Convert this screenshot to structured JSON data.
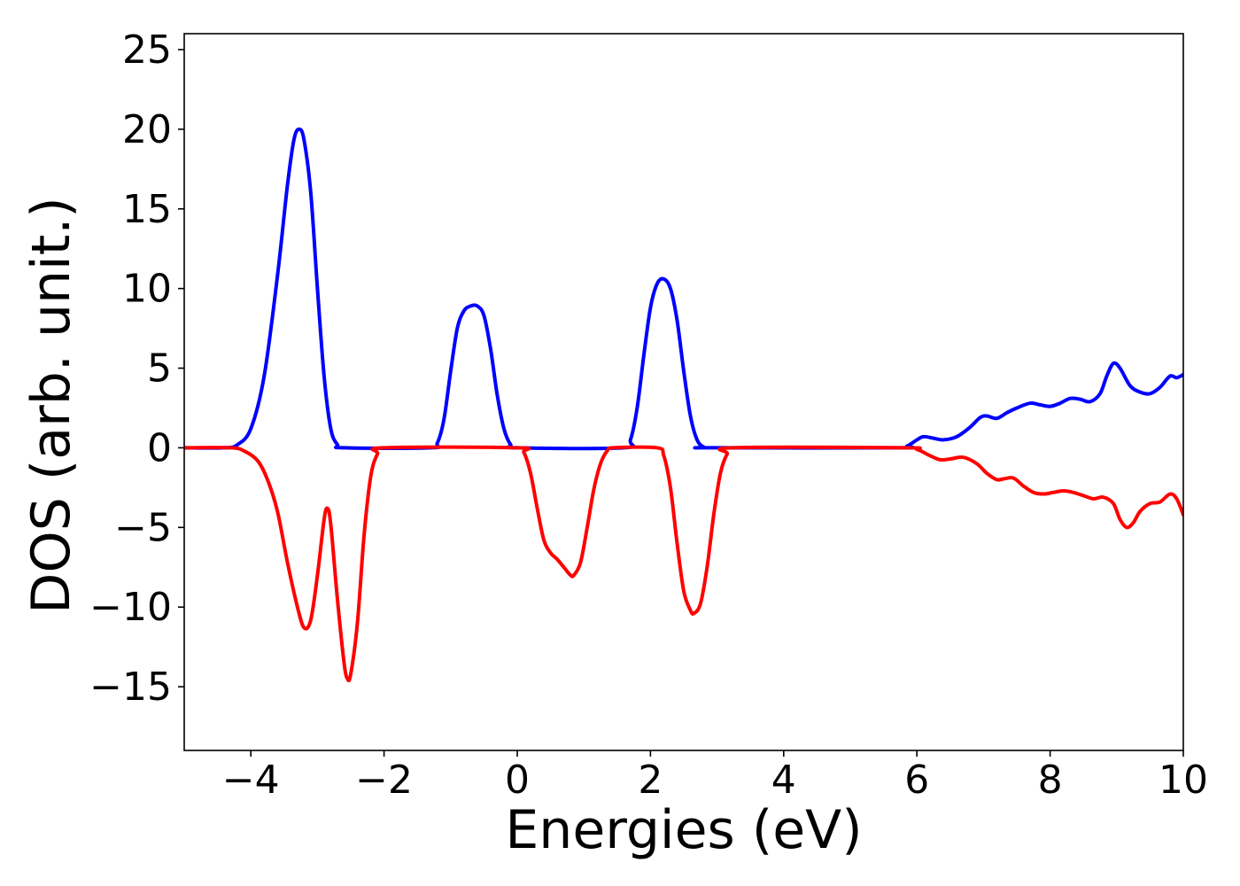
{
  "chart_data": {
    "type": "line",
    "title": "",
    "xlabel": "Energies (eV)",
    "ylabel": "DOS (arb. unit.)",
    "xlim": [
      -5,
      10
    ],
    "ylim": [
      -19,
      26
    ],
    "x_ticks": [
      -4,
      -2,
      0,
      2,
      4,
      6,
      8,
      10
    ],
    "y_ticks": [
      -15,
      -10,
      -5,
      0,
      5,
      10,
      15,
      20,
      25
    ],
    "x_tick_labels": [
      "−4",
      "−2",
      "0",
      "2",
      "4",
      "6",
      "8",
      "10"
    ],
    "y_tick_labels": [
      "−15",
      "−10",
      "−5",
      "0",
      "5",
      "10",
      "15",
      "20",
      "25"
    ],
    "grid": false,
    "legend": false,
    "series": [
      {
        "color": "#0000ff",
        "points": [
          [
            -5.0,
            0
          ],
          [
            -4.4,
            0
          ],
          [
            -4.2,
            0.2
          ],
          [
            -4.0,
            1.2
          ],
          [
            -3.8,
            4.5
          ],
          [
            -3.6,
            10.8
          ],
          [
            -3.45,
            16.5
          ],
          [
            -3.35,
            19.4
          ],
          [
            -3.27,
            20.0
          ],
          [
            -3.2,
            19.3
          ],
          [
            -3.1,
            16.0
          ],
          [
            -3.0,
            10.0
          ],
          [
            -2.9,
            4.5
          ],
          [
            -2.8,
            1.2
          ],
          [
            -2.7,
            0.2
          ],
          [
            -2.6,
            0
          ],
          [
            -1.3,
            0
          ],
          [
            -1.2,
            0.3
          ],
          [
            -1.1,
            1.8
          ],
          [
            -1.0,
            4.8
          ],
          [
            -0.9,
            7.5
          ],
          [
            -0.8,
            8.6
          ],
          [
            -0.7,
            8.9
          ],
          [
            -0.6,
            8.9
          ],
          [
            -0.5,
            8.3
          ],
          [
            -0.4,
            6.2
          ],
          [
            -0.3,
            3.3
          ],
          [
            -0.2,
            1.2
          ],
          [
            -0.1,
            0.2
          ],
          [
            0.0,
            0
          ],
          [
            1.6,
            0
          ],
          [
            1.7,
            0.5
          ],
          [
            1.8,
            2.5
          ],
          [
            1.9,
            5.8
          ],
          [
            2.0,
            8.8
          ],
          [
            2.1,
            10.3
          ],
          [
            2.2,
            10.6
          ],
          [
            2.3,
            10.0
          ],
          [
            2.4,
            8.0
          ],
          [
            2.5,
            4.8
          ],
          [
            2.6,
            2.0
          ],
          [
            2.7,
            0.5
          ],
          [
            2.8,
            0.05
          ],
          [
            2.9,
            0
          ],
          [
            5.7,
            0
          ],
          [
            5.85,
            0.1
          ],
          [
            6.0,
            0.5
          ],
          [
            6.1,
            0.7
          ],
          [
            6.25,
            0.6
          ],
          [
            6.4,
            0.5
          ],
          [
            6.6,
            0.7
          ],
          [
            6.8,
            1.3
          ],
          [
            6.95,
            1.9
          ],
          [
            7.05,
            2.0
          ],
          [
            7.2,
            1.85
          ],
          [
            7.35,
            2.2
          ],
          [
            7.5,
            2.5
          ],
          [
            7.7,
            2.8
          ],
          [
            7.85,
            2.7
          ],
          [
            8.0,
            2.6
          ],
          [
            8.15,
            2.8
          ],
          [
            8.3,
            3.1
          ],
          [
            8.45,
            3.05
          ],
          [
            8.6,
            2.9
          ],
          [
            8.75,
            3.4
          ],
          [
            8.85,
            4.5
          ],
          [
            8.95,
            5.3
          ],
          [
            9.05,
            5.0
          ],
          [
            9.2,
            3.9
          ],
          [
            9.35,
            3.5
          ],
          [
            9.5,
            3.4
          ],
          [
            9.65,
            3.8
          ],
          [
            9.8,
            4.5
          ],
          [
            9.9,
            4.4
          ],
          [
            10.0,
            4.6
          ]
        ]
      },
      {
        "color": "#ff0000",
        "points": [
          [
            -5.0,
            0
          ],
          [
            -4.3,
            0
          ],
          [
            -4.1,
            -0.2
          ],
          [
            -3.9,
            -0.8
          ],
          [
            -3.75,
            -2.0
          ],
          [
            -3.6,
            -4.0
          ],
          [
            -3.45,
            -7.2
          ],
          [
            -3.3,
            -10.0
          ],
          [
            -3.2,
            -11.3
          ],
          [
            -3.1,
            -10.8
          ],
          [
            -3.0,
            -8.0
          ],
          [
            -2.9,
            -4.5
          ],
          [
            -2.85,
            -3.8
          ],
          [
            -2.8,
            -4.8
          ],
          [
            -2.7,
            -9.5
          ],
          [
            -2.6,
            -13.5
          ],
          [
            -2.55,
            -14.5
          ],
          [
            -2.5,
            -14.2
          ],
          [
            -2.4,
            -11.0
          ],
          [
            -2.3,
            -5.5
          ],
          [
            -2.2,
            -1.8
          ],
          [
            -2.1,
            -0.4
          ],
          [
            -2.0,
            0
          ],
          [
            0.0,
            0
          ],
          [
            0.1,
            -0.3
          ],
          [
            0.2,
            -1.6
          ],
          [
            0.3,
            -3.8
          ],
          [
            0.4,
            -5.8
          ],
          [
            0.5,
            -6.6
          ],
          [
            0.6,
            -7.0
          ],
          [
            0.7,
            -7.5
          ],
          [
            0.8,
            -8.0
          ],
          [
            0.85,
            -8.0
          ],
          [
            0.95,
            -7.2
          ],
          [
            1.05,
            -5.0
          ],
          [
            1.15,
            -2.6
          ],
          [
            1.25,
            -1.0
          ],
          [
            1.35,
            -0.2
          ],
          [
            1.45,
            0
          ],
          [
            2.1,
            0
          ],
          [
            2.2,
            -0.5
          ],
          [
            2.3,
            -2.5
          ],
          [
            2.4,
            -6.0
          ],
          [
            2.5,
            -9.0
          ],
          [
            2.6,
            -10.2
          ],
          [
            2.65,
            -10.4
          ],
          [
            2.75,
            -9.8
          ],
          [
            2.85,
            -7.5
          ],
          [
            2.95,
            -4.2
          ],
          [
            3.05,
            -1.6
          ],
          [
            3.15,
            -0.4
          ],
          [
            3.25,
            0
          ],
          [
            5.8,
            0
          ],
          [
            6.0,
            -0.1
          ],
          [
            6.2,
            -0.5
          ],
          [
            6.35,
            -0.75
          ],
          [
            6.5,
            -0.7
          ],
          [
            6.7,
            -0.6
          ],
          [
            6.9,
            -1.0
          ],
          [
            7.05,
            -1.6
          ],
          [
            7.2,
            -2.0
          ],
          [
            7.3,
            -1.95
          ],
          [
            7.45,
            -1.9
          ],
          [
            7.6,
            -2.4
          ],
          [
            7.75,
            -2.8
          ],
          [
            7.9,
            -2.9
          ],
          [
            8.05,
            -2.8
          ],
          [
            8.2,
            -2.7
          ],
          [
            8.35,
            -2.8
          ],
          [
            8.5,
            -3.0
          ],
          [
            8.65,
            -3.2
          ],
          [
            8.8,
            -3.1
          ],
          [
            8.95,
            -3.5
          ],
          [
            9.05,
            -4.5
          ],
          [
            9.15,
            -5.0
          ],
          [
            9.25,
            -4.7
          ],
          [
            9.35,
            -4.0
          ],
          [
            9.5,
            -3.5
          ],
          [
            9.65,
            -3.4
          ],
          [
            9.8,
            -2.9
          ],
          [
            9.9,
            -3.2
          ],
          [
            10.0,
            -4.2
          ]
        ]
      }
    ]
  }
}
